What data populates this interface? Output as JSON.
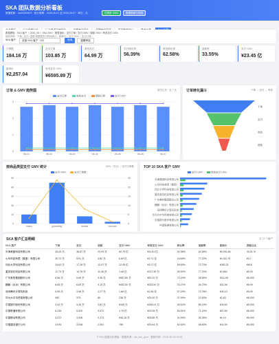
{
  "header": {
    "title": "SKA 团队数据分析看板",
    "subtitle": "数据更新：dw20260603 · 统计周期：2026-06-01 至 2026-06-07 · 单位：元",
    "badges": [
      "已同步 GMV",
      "数据更新已完成"
    ]
  },
  "tabs": [
    "总览看板",
    "行业周期分析",
    "行业渠道深度报告",
    "品牌商品报告",
    "品牌商品报表",
    "页面数据统计",
    "渠道大盘",
    "SKA大盘"
  ],
  "filters": {
    "line1": "数据看板：SKA 客户（ 2026_06 ）· SKA GMV · 报表指标：支付订单 / 支付 GMV / 退款 GMV / 有效支付 GMV",
    "line2": "指标说明：下单 / 支付 / 退款 数据按支付时间统计，客单价 = 支付 GMV ÷ 支付订单",
    "select_label": "SKA 客户",
    "select_value": "全部 SKA 客户（33）",
    "buttons": [
      "查询",
      "重置筛选"
    ]
  },
  "kpis": [
    {
      "label": "下单数",
      "value": "184.16 万"
    },
    {
      "label": "支付订单",
      "value": "103.85 万"
    },
    {
      "label": "有效支付",
      "value": "64.99 万"
    },
    {
      "label": "支付转化率",
      "value": "56.39%"
    },
    {
      "label": "有效转化率",
      "value": "62.58%"
    },
    {
      "label": "退款率",
      "value": "33.55%"
    },
    {
      "label": "支付 GMV",
      "value": "¥23.45 亿"
    },
    {
      "label": "客单价",
      "value": "¥2,257.04"
    },
    {
      "label": "有效支付 GMV",
      "value": "¥6595.89 万"
    }
  ],
  "chart_data": [
    {
      "type": "bar",
      "title": "订单 & GMV 趋势图",
      "note": "按日汇总 · 近 7 天",
      "categories": [
        "06-01",
        "06-02",
        "06-03",
        "06-04",
        "06-05",
        "06-06",
        "06-07"
      ],
      "ylim": [
        0,
        3
      ],
      "yticks": [
        0,
        1,
        2,
        3
      ],
      "grid": true,
      "series": [
        {
          "name": "支付订单",
          "kind": "bar",
          "color": "#5b8ff9",
          "values": [
            2.7,
            2.8,
            2.7,
            2.8,
            2.7,
            2.8,
            2.7
          ]
        },
        {
          "name": "有效支付",
          "kind": "line",
          "color": "#5ad8a6",
          "values": [
            0.2,
            0.2,
            0.2,
            0.2,
            0.2,
            0.2,
            0.2
          ]
        },
        {
          "name": "退款订单",
          "kind": "line",
          "color": "#f6903d",
          "values": [
            0.1,
            0.1,
            0.1,
            0.1,
            0.1,
            0.1,
            0.1
          ]
        },
        {
          "name": "支付 GMV",
          "kind": "line",
          "color": "#6f5ef9",
          "values": [
            2.9,
            2.9,
            2.9,
            2.9,
            2.9,
            2.9,
            2.9
          ]
        }
      ]
    },
    {
      "type": "funnel",
      "title": "订单转化漏斗",
      "note": "下单 → 支付 → 有效",
      "categories": [
        "下单",
        "支付",
        "有效",
        "退款"
      ],
      "colors": [
        "#3f7ef5",
        "#56c26b",
        "#f6b32d",
        "#ef5a4d"
      ],
      "values": [
        100,
        56,
        35,
        19
      ]
    },
    {
      "type": "bar",
      "title": "按商品类型支付 GMV 统计",
      "note": "GMV（万元）/ 支付订单数",
      "categories": [
        "ecard",
        "goodsMg",
        "mobile",
        "voucher"
      ],
      "ylim": [
        0,
        50
      ],
      "yticks": [
        0,
        10,
        20,
        30,
        40,
        50
      ],
      "y2lim": [
        0,
        25
      ],
      "y2ticks": [
        0,
        5,
        10,
        15,
        20,
        25
      ],
      "grid": true,
      "series": [
        {
          "name": "支付 GMV",
          "kind": "bar",
          "color": "#3f7ef5",
          "values": [
            10,
            45,
            8,
            2
          ]
        },
        {
          "name": "支付订单数",
          "kind": "line",
          "axis": "y2",
          "color": "#f6b32d",
          "values": [
            3,
            24,
            8,
            1
          ]
        }
      ]
    },
    {
      "type": "barh",
      "title": "TOP 10 SKA 客户 GMV",
      "categories": [
        "天津美团科技有限公司",
        "火车科技有限（集团）",
        "河北大学科技有限公司",
        "重庆浪花科技有限公司",
        "广东美的集团股份公司",
        "麒麟（北京）有限公司",
        "深圳腾讯计算机系统",
        "华为大中华终端有限公司",
        "中国银行股份有限公司",
        "中国联通有限公司"
      ],
      "xlim": [
        0,
        100
      ],
      "series": [
        {
          "name": "支付 GMV",
          "color": "#3f7ef5",
          "values": [
            95,
            30,
            27,
            24,
            21,
            18,
            15,
            13,
            11,
            9
          ]
        },
        {
          "name": "有效支付 GMV",
          "color": "#56c26b",
          "values": [
            6,
            4,
            4,
            3,
            3,
            3,
            2,
            2,
            2,
            1
          ]
        }
      ]
    }
  ],
  "table": {
    "title": "SKA 客户汇总明细",
    "note": "共 12 个客户",
    "columns": [
      "SKA 客户",
      "下单",
      "支付",
      "退款",
      "支付 GMV",
      "有效支付 GMV",
      "转化率",
      "退款率",
      "客单价",
      "贡献占比"
    ],
    "rows": [
      [
        "天津美团科技有限公司",
        "35.26 万",
        "36.87 万",
        "23.00 万",
        "¥2.79 亿",
        "¥11.81 亿",
        "62.38%",
        "64.58%",
        "¥5,931.84",
        "40.01 %"
      ],
      [
        "火车科技有限（集团）有限公司",
        "20.72 万",
        "5.91 万",
        "3.82 万",
        "6.69 亿",
        "¥1.71 亿",
        "16.60%",
        "77.22%",
        "¥4,311.70",
        "¥14"
      ],
      [
        "河北大学科技有限公司",
        "24.63 万",
        "17.28 万",
        "13.07 万",
        "12.45 亿",
        "¥3.27 亿",
        "69.65%",
        "72.73%",
        "¥383.32",
        "¥616"
      ],
      [
        "重庆浪花科技有限公司",
        "11.73 万",
        "14.76 万",
        "11.48 万",
        "1.46 亿",
        "¥127.40 万",
        "85.92%",
        "77.20%",
        "¥2,864",
        "¥6.00"
      ],
      [
        "广东美的集团股份公司",
        "8.68 万",
        "5.89 万",
        "3.36 万",
        "¥567.85 万",
        "¥90.20 万",
        "74.20%",
        "38.55%",
        "¥111.05",
        "¥6.000"
      ],
      [
        "麒麟（北京）有限公司",
        "8.65 万",
        "6.63 万",
        "3.12 万",
        "¥492.52 万",
        "¥153.50 万",
        "76.27%",
        "46.73%",
        "¥21.08",
        "¥6.00"
      ],
      [
        "深圳腾讯计算机系统",
        "6.95 万",
        "3.98 万",
        "2.27 万",
        "1.86 亿",
        "¥1.46 亿",
        "57.25%",
        "72.78%",
        "¥35.10",
        "¥6.00"
      ],
      [
        "华为大中华终端有限公司",
        "982",
        "373",
        "85",
        "236 万",
        "¥25.00 万",
        "37.99%",
        "22.83%",
        "¥2.63",
        "¥6.000"
      ],
      [
        "中国银行股份有限公司",
        "3.42 万",
        "3.26 万",
        "2.81 万",
        "¥155 万",
        "¥185.01 万",
        "95.52%",
        "86.19%",
        "¥26.83",
        "¥6.000"
      ],
      [
        "中国联通有限公司",
        "6,235",
        "5,020",
        "3,572",
        "1.70 亿",
        "¥29.55 万",
        "80.51%",
        "71.15%",
        "¥67.89",
        "¥6.000"
      ],
      [
        "中国移动有限公司",
        "4,272",
        "3,926",
        "2,173",
        "¥36.15 万",
        "¥28.86 万",
        "91.90%",
        "55.35%",
        "¥6.19",
        "¥6.000"
      ],
      [
        "中国建设银行公司",
        "3,676",
        "3,048",
        "2,091",
        "795",
        "¥33.64 万",
        "82.92%",
        "68.60%",
        "¥31.09",
        "¥6.000"
      ]
    ]
  },
  "footer": "© SKA 数据分析看板 · 数据来源：dw_ska_gmv · 更新时间：2026-06-03 09:00"
}
